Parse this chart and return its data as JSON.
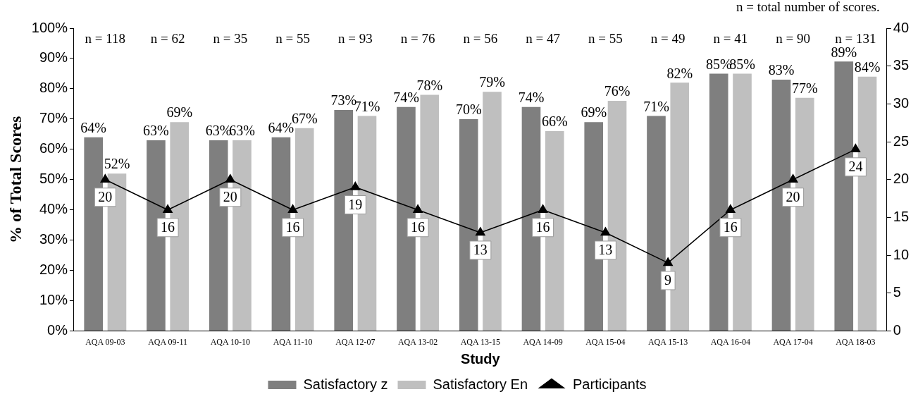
{
  "chart_data": {
    "type": "bar",
    "xlabel": "Study",
    "ylabel": "% of Total Scores",
    "categories": [
      "AQA 09-03",
      "AQA 09-11",
      "AQA 10-10",
      "AQA 11-10",
      "AQA 12-07",
      "AQA 13-02",
      "AQA 13-15",
      "AQA 14-09",
      "AQA 15-04",
      "AQA 15-13",
      "AQA 16-04",
      "AQA 17-04",
      "AQA 18-03"
    ],
    "series": [
      {
        "name": "Satisfactory z",
        "color": "#7f7f7f",
        "values": [
          64,
          63,
          63,
          64,
          73,
          74,
          70,
          74,
          69,
          71,
          85,
          83,
          89
        ],
        "value_labels": [
          "64%",
          "63%",
          "63%",
          "64%",
          "73%",
          "74%",
          "70%",
          "74%",
          "69%",
          "71%",
          "85%",
          "83%",
          "89%"
        ]
      },
      {
        "name": "Satisfactory En",
        "color": "#bfbfbf",
        "values": [
          52,
          69,
          63,
          67,
          71,
          78,
          79,
          66,
          76,
          82,
          85,
          77,
          84
        ],
        "value_labels": [
          "52%",
          "69%",
          "63%",
          "67%",
          "71%",
          "78%",
          "79%",
          "66%",
          "76%",
          "82%",
          "85%",
          "77%",
          "84%"
        ]
      },
      {
        "name": "Participants",
        "type": "line",
        "axis": "y2",
        "color": "#000000",
        "marker": "triangle",
        "values": [
          20,
          16,
          20,
          16,
          19,
          16,
          13,
          16,
          13,
          9,
          16,
          20,
          24
        ],
        "value_labels": [
          "20",
          "16",
          "20",
          "16",
          "19",
          "16",
          "13",
          "16",
          "13",
          "9",
          "16",
          "20",
          "24"
        ]
      }
    ],
    "ylim": [
      0,
      100
    ],
    "yticks": [
      {
        "value": 0,
        "label": "0%"
      },
      {
        "value": 10,
        "label": "10%"
      },
      {
        "value": 20,
        "label": "20%"
      },
      {
        "value": 30,
        "label": "30%"
      },
      {
        "value": 40,
        "label": "40%"
      },
      {
        "value": 50,
        "label": "50%"
      },
      {
        "value": 60,
        "label": "60%"
      },
      {
        "value": 70,
        "label": "70%"
      },
      {
        "value": 80,
        "label": "80%"
      },
      {
        "value": 90,
        "label": "90%"
      },
      {
        "value": 100,
        "label": "100%"
      }
    ],
    "y2lim": [
      0,
      40
    ],
    "y2ticks": [
      0,
      5,
      10,
      15,
      20,
      25,
      30,
      35,
      40
    ],
    "legend": "bottom",
    "grid": false,
    "annotations": [
      "n = total number of scores.",
      "n = 118",
      "n = 62",
      "n = 35",
      "n = 55",
      "n = 93",
      "n = 76",
      "n = 56",
      "n = 47",
      "n = 55",
      "n = 49",
      "n = 41",
      "n = 90",
      "n = 131"
    ]
  }
}
